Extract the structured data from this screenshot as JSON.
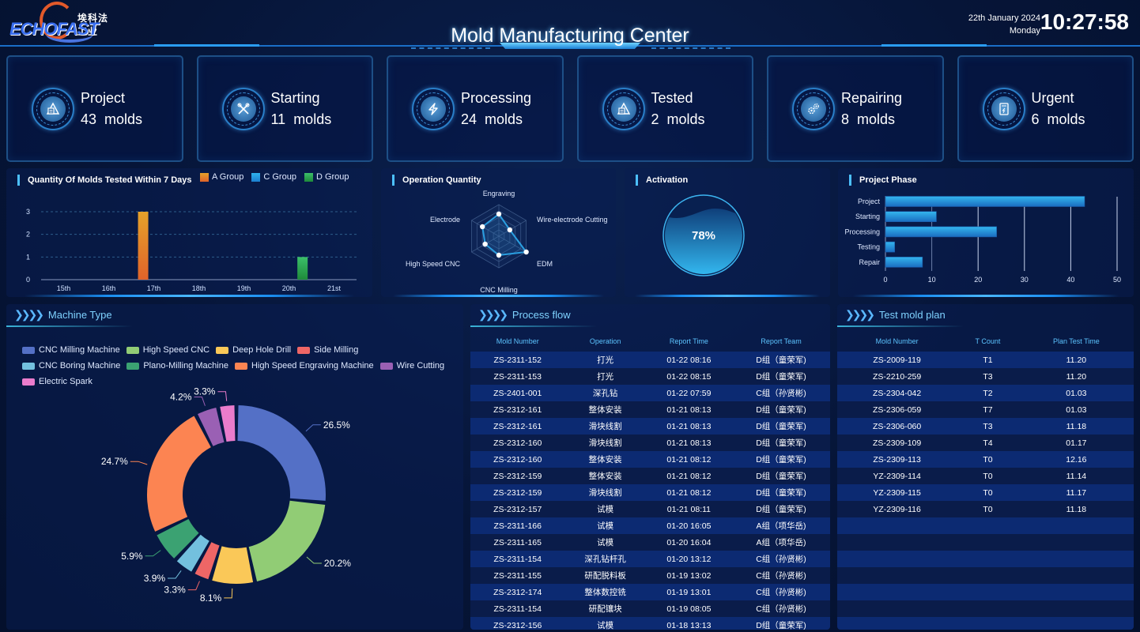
{
  "header": {
    "logo_cn": "埃科法工业",
    "logo_en": "ECHOFAST",
    "title": "Mold Manufacturing Center",
    "date": "22th January 2024",
    "weekday": "Monday",
    "time": "10:27:58"
  },
  "cards": [
    {
      "label": "Project",
      "count": "43",
      "unit": "molds",
      "icon": "pyramid-chart-icon"
    },
    {
      "label": "Starting",
      "count": "11",
      "unit": "molds",
      "icon": "tools-icon"
    },
    {
      "label": "Processing",
      "count": "24",
      "unit": "molds",
      "icon": "lightning-icon"
    },
    {
      "label": "Tested",
      "count": "2",
      "unit": "molds",
      "icon": "pyramid-chart-icon"
    },
    {
      "label": "Repairing",
      "count": "8",
      "unit": "molds",
      "icon": "gears-icon"
    },
    {
      "label": "Urgent",
      "count": "6",
      "unit": "molds",
      "icon": "urgent-document-icon"
    }
  ],
  "panels": {
    "tested": "Quantity Of Molds Tested Within 7 Days",
    "operation": "Operation Quantity",
    "activation": "Activation",
    "phase": "Project Phase",
    "machine_type": "Machine Type",
    "process_flow": "Process flow",
    "test_plan": "Test mold plan"
  },
  "activation": {
    "value": 78,
    "label": "78%"
  },
  "chart_data": [
    {
      "type": "bar",
      "title": "Quantity Of Molds Tested Within 7 Days",
      "categories": [
        "15th",
        "16th",
        "17th",
        "18th",
        "19th",
        "20th",
        "21st"
      ],
      "series": [
        {
          "name": "A Group",
          "color": "#e5862a",
          "values": [
            0,
            0,
            3,
            0,
            0,
            0,
            0
          ]
        },
        {
          "name": "C Group",
          "color": "#2a9ee0",
          "values": [
            0,
            0,
            0,
            0,
            0,
            0,
            0
          ]
        },
        {
          "name": "D Group",
          "color": "#2fa34f",
          "values": [
            0,
            0,
            0,
            0,
            0,
            1,
            0
          ]
        }
      ],
      "yticks": [
        "0",
        "1",
        "2",
        "3"
      ],
      "ylim": [
        0,
        3
      ],
      "legend": "top-right",
      "grid": true
    },
    {
      "type": "radar",
      "title": "Operation Quantity",
      "indicators": [
        "Engraving",
        "Wire-electrode Cutting",
        "EDM",
        "CNC Milling",
        "High Speed CNC",
        "Electrode"
      ],
      "values": [
        0.7,
        0.4,
        1.0,
        0.6,
        0.5,
        0.6
      ]
    },
    {
      "type": "bar",
      "orientation": "horizontal",
      "title": "Project Phase",
      "categories": [
        "Project",
        "Starting",
        "Processing",
        "Testing",
        "Repair"
      ],
      "values": [
        43,
        11,
        24,
        2,
        8
      ],
      "xticks": [
        "0",
        "10",
        "20",
        "30",
        "40",
        "50"
      ],
      "xlim": [
        0,
        50
      ],
      "grid": true
    },
    {
      "type": "pie",
      "title": "Machine Type",
      "donut": true,
      "legend": "top",
      "slices": [
        {
          "name": "CNC Milling Machine",
          "value": 26.5,
          "label": "26.5%",
          "color": "#5470c6"
        },
        {
          "name": "High Speed CNC",
          "value": 20.2,
          "label": "20.2%",
          "color": "#91cc75"
        },
        {
          "name": "Deep Hole Drill",
          "value": 8.1,
          "label": "8.1%",
          "color": "#fac858"
        },
        {
          "name": "Side Milling",
          "value": 3.3,
          "label": "3.3%",
          "color": "#ee6666"
        },
        {
          "name": "CNC Boring Machine",
          "value": 3.9,
          "label": "3.9%",
          "color": "#73c0de"
        },
        {
          "name": "Plano-Milling Machine",
          "value": 5.9,
          "label": "5.9%",
          "color": "#3ba272"
        },
        {
          "name": "High Speed Engraving Machine",
          "value": 24.7,
          "label": "24.7%",
          "color": "#fc8452"
        },
        {
          "name": "Wire Cutting",
          "value": 4.2,
          "label": "4.2%",
          "color": "#9a60b4"
        },
        {
          "name": "Electric Spark",
          "value": 3.3,
          "label": "3.3%",
          "color": "#ea7ccc"
        }
      ]
    }
  ],
  "process_flow": {
    "columns": [
      "Mold Number",
      "Operation",
      "Report Time",
      "Report Team"
    ],
    "rows": [
      [
        "ZS-2311-152",
        "打光",
        "01-22 08:16",
        "D组（童荣军)"
      ],
      [
        "ZS-2311-153",
        "打光",
        "01-22 08:15",
        "D组（童荣军)"
      ],
      [
        "ZS-2401-001",
        "深孔钻",
        "01-22 07:59",
        "C组（孙贤彬)"
      ],
      [
        "ZS-2312-161",
        "整体安装",
        "01-21 08:13",
        "D组（童荣军)"
      ],
      [
        "ZS-2312-161",
        "滑块线割",
        "01-21 08:13",
        "D组（童荣军)"
      ],
      [
        "ZS-2312-160",
        "滑块线割",
        "01-21 08:13",
        "D组（童荣军)"
      ],
      [
        "ZS-2312-160",
        "整体安装",
        "01-21 08:12",
        "D组（童荣军)"
      ],
      [
        "ZS-2312-159",
        "整体安装",
        "01-21 08:12",
        "D组（童荣军)"
      ],
      [
        "ZS-2312-159",
        "滑块线割",
        "01-21 08:12",
        "D组（童荣军)"
      ],
      [
        "ZS-2312-157",
        "试模",
        "01-21 08:11",
        "D组（童荣军)"
      ],
      [
        "ZS-2311-166",
        "试模",
        "01-20 16:05",
        "A组（项华岳)"
      ],
      [
        "ZS-2311-165",
        "试模",
        "01-20 16:04",
        "A组（项华岳)"
      ],
      [
        "ZS-2311-154",
        "深孔钻杆孔",
        "01-20 13:12",
        "C组（孙贤彬)"
      ],
      [
        "ZS-2311-155",
        "研配脱料板",
        "01-19 13:02",
        "C组（孙贤彬)"
      ],
      [
        "ZS-2312-174",
        "整体数控铣",
        "01-19 13:01",
        "C组（孙贤彬)"
      ],
      [
        "ZS-2311-154",
        "研配镶块",
        "01-19 08:05",
        "C组（孙贤彬)"
      ],
      [
        "ZS-2312-156",
        "试模",
        "01-18 13:13",
        "D组（童荣军)"
      ]
    ]
  },
  "test_plan": {
    "columns": [
      "Mold Number",
      "T Count",
      "Plan Test Time"
    ],
    "rows": [
      [
        "ZS-2009-119",
        "T1",
        "11.20"
      ],
      [
        "ZS-2210-259",
        "T3",
        "11.20"
      ],
      [
        "ZS-2304-042",
        "T2",
        "01.03"
      ],
      [
        "ZS-2306-059",
        "T7",
        "01.03"
      ],
      [
        "ZS-2306-060",
        "T3",
        "11.18"
      ],
      [
        "ZS-2309-109",
        "T4",
        "01.17"
      ],
      [
        "ZS-2309-113",
        "T0",
        "12.16"
      ],
      [
        "YZ-2309-114",
        "T0",
        "11.14"
      ],
      [
        "YZ-2309-115",
        "T0",
        "11.17"
      ],
      [
        "YZ-2309-116",
        "T0",
        "11.18"
      ],
      [
        "",
        "",
        ""
      ],
      [
        "",
        "",
        ""
      ],
      [
        "",
        "",
        ""
      ],
      [
        "",
        "",
        ""
      ],
      [
        "",
        "",
        ""
      ],
      [
        "",
        "",
        ""
      ],
      [
        "",
        "",
        ""
      ]
    ]
  }
}
